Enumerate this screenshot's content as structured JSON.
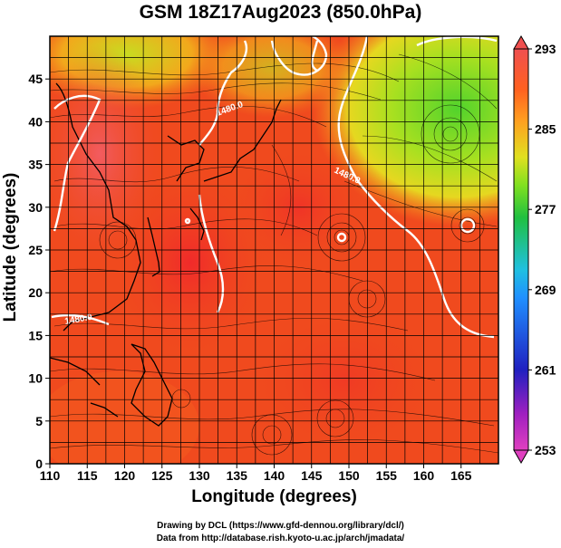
{
  "title": "GSM 18Z17Aug2023 (850.0hPa)",
  "x_axis": {
    "label": "Longitude (degrees)",
    "ticks": [
      "110",
      "115",
      "120",
      "125",
      "130",
      "135",
      "140",
      "145",
      "150",
      "155",
      "160",
      "165"
    ]
  },
  "y_axis": {
    "label": "Latitude  (degrees)",
    "ticks": [
      "0",
      "5",
      "10",
      "15",
      "20",
      "25",
      "30",
      "35",
      "40",
      "45"
    ]
  },
  "colorbar": {
    "ticks": [
      "253",
      "261",
      "269",
      "277",
      "285",
      "293"
    ],
    "range": [
      253,
      293
    ],
    "colors": [
      "#e040c0",
      "#a020c0",
      "#2020c0",
      "#2080ff",
      "#20c0e0",
      "#20c040",
      "#80e020",
      "#e0e020",
      "#ffa020",
      "#ff6020",
      "#f03030",
      "#f06060"
    ]
  },
  "contours": [
    {
      "label": "1480.0"
    },
    {
      "label": "1480.0"
    },
    {
      "label": "1480.0"
    }
  ],
  "credits": {
    "line1": "Drawing by DCL (https://www.gfd-dennou.org/library/dcl/)",
    "line2": "Data from http://database.rish.kyoto-u.ac.jp/arch/jmadata/"
  },
  "map": {
    "lon_range": [
      110,
      170
    ],
    "lat_range": [
      0,
      50
    ],
    "grid_step": 2.5,
    "field": "temperature",
    "colors": {
      "warm": "#f04a1e",
      "hot": "#f0302a",
      "pinkish": "#f25566",
      "orange": "#f8891a",
      "yellow": "#d8dc1c",
      "green": "#58d82c",
      "contour": "#ffffff",
      "coast": "#000000",
      "streamline": "#000000"
    }
  }
}
